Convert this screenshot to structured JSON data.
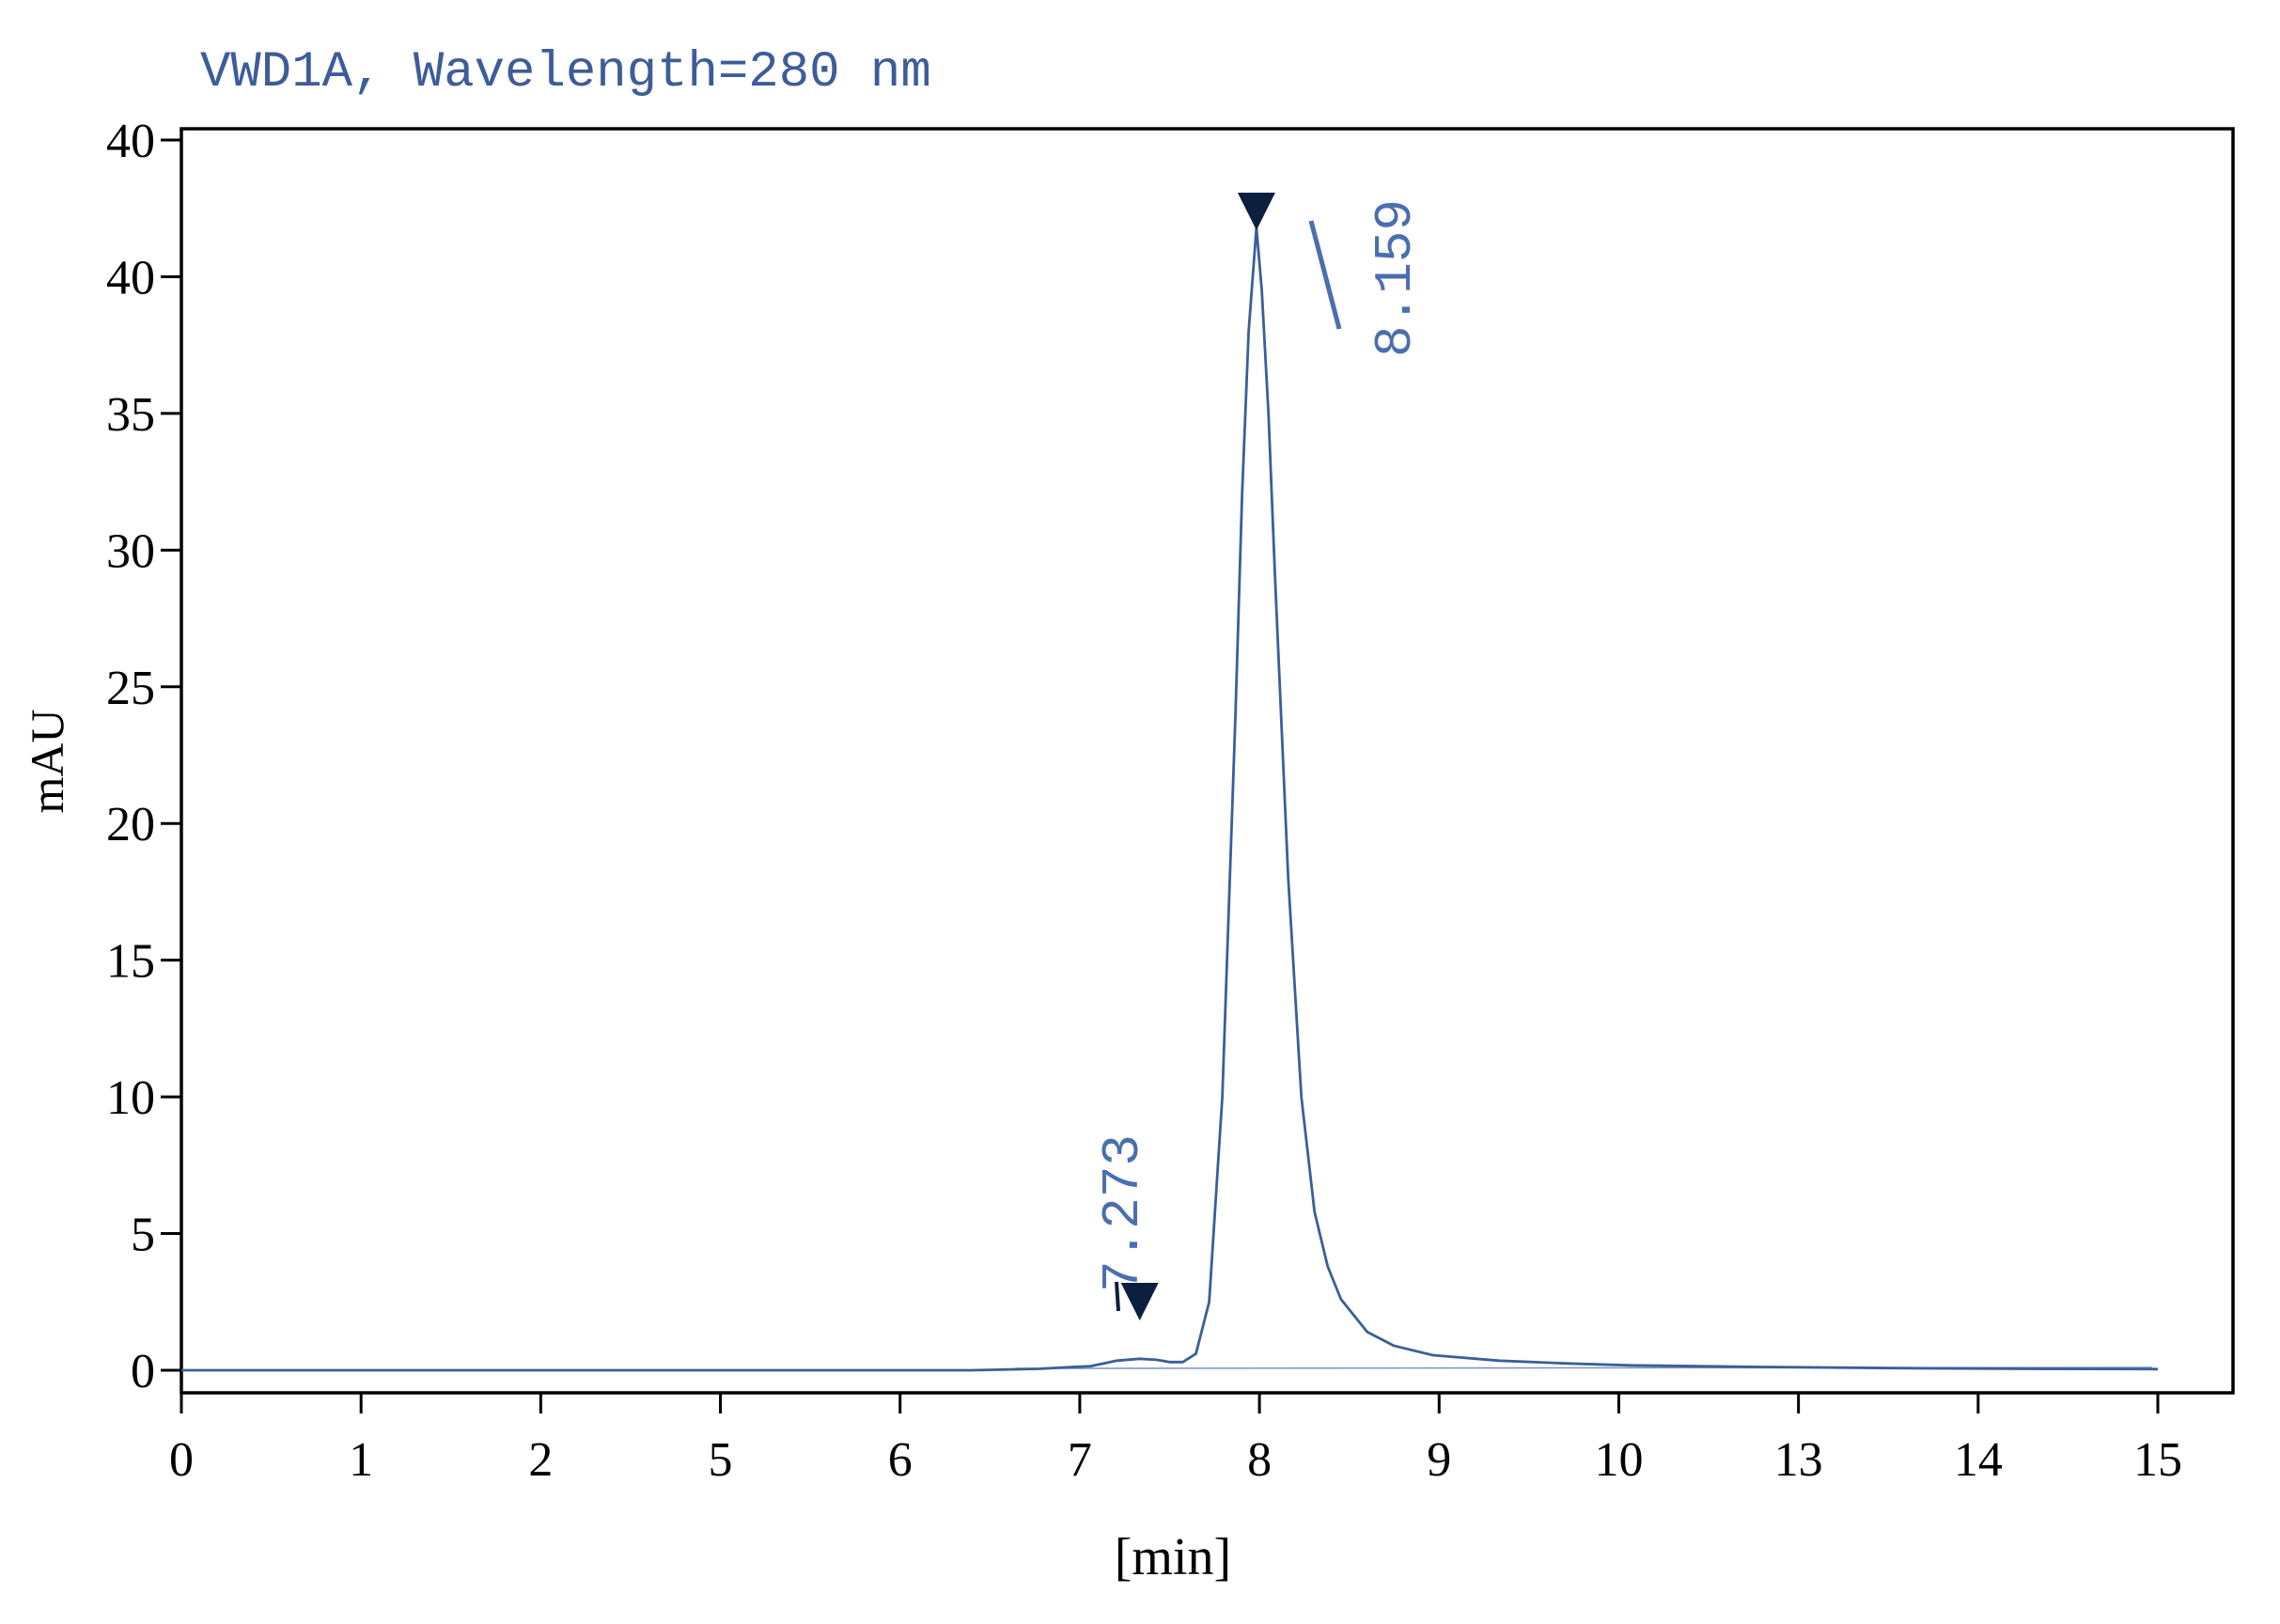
{
  "chart_data": {
    "type": "line",
    "title": "VWD1A, Wavelength=280 nm",
    "xlabel": "[min]",
    "ylabel": "mAU",
    "x_tick_labels": [
      "0",
      "1",
      "2",
      "5",
      "6",
      "7",
      "8",
      "9",
      "10",
      "13",
      "14",
      "15"
    ],
    "y_tick_labels": [
      "0",
      "5",
      "10",
      "15",
      "20",
      "25",
      "30",
      "35",
      "40",
      "40"
    ],
    "grid": false,
    "series": [
      {
        "x": [
          0,
          1,
          2,
          3,
          4,
          5,
          6,
          6.5,
          6.9,
          7.0,
          7.1,
          7.273,
          7.4,
          7.5,
          7.6,
          7.7,
          7.8,
          7.9,
          8.0,
          8.05,
          8.1,
          8.159,
          8.2,
          8.25,
          8.3,
          8.4,
          8.5,
          8.6,
          8.7,
          8.8,
          9.0,
          9.2,
          9.5,
          10,
          10.5,
          11,
          12,
          13,
          14,
          15
        ],
        "y": [
          0,
          0,
          0,
          0,
          0,
          0,
          0,
          0.05,
          0.15,
          0.25,
          0.35,
          0.42,
          0.38,
          0.3,
          0.3,
          0.6,
          2.5,
          10,
          24,
          32,
          38,
          41.8,
          39.5,
          35,
          29,
          18,
          10,
          5.8,
          3.8,
          2.6,
          1.4,
          0.9,
          0.55,
          0.35,
          0.25,
          0.18,
          0.12,
          0.08,
          0.05,
          0.04
        ]
      }
    ],
    "peaks": [
      {
        "time": 7.273,
        "label": "7.273"
      },
      {
        "time": 8.159,
        "label": "8.159"
      }
    ],
    "colors": {
      "line": "#3a5f98",
      "title": "#3d5c99",
      "peak_label": "#4a6fae",
      "marker": "#0d1f3f",
      "axis": "#000000"
    }
  }
}
